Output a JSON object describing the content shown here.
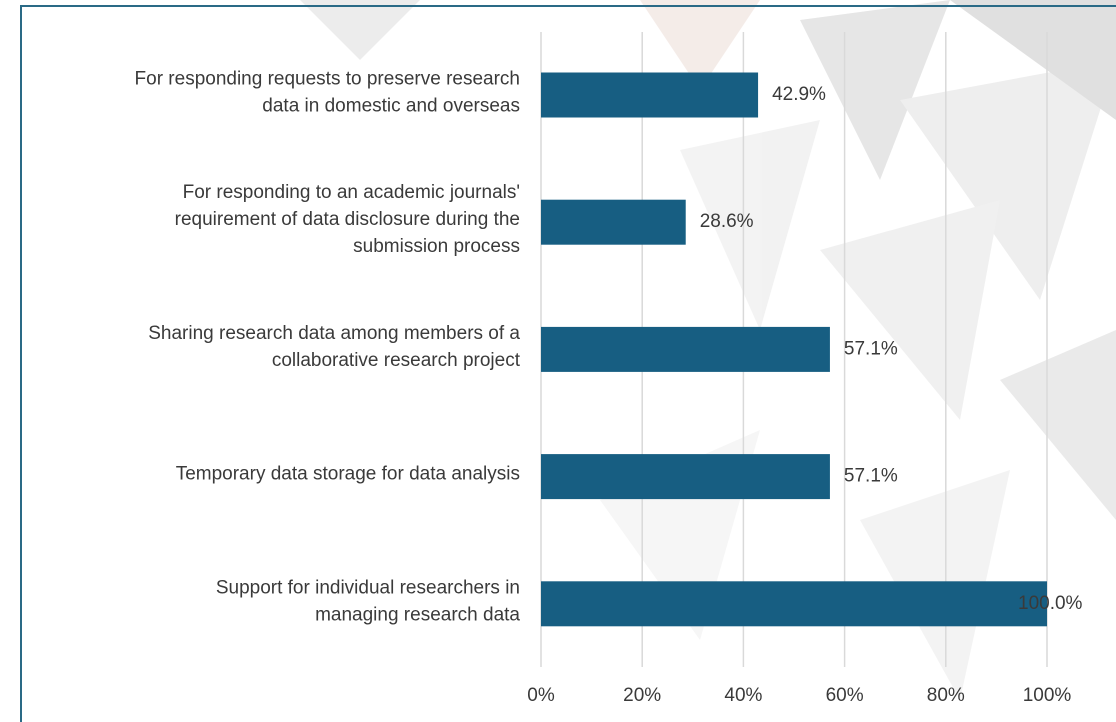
{
  "chart_data": {
    "type": "bar",
    "orientation": "horizontal",
    "categories": [
      [
        "For responding requests to preserve research",
        "data in domestic and overseas"
      ],
      [
        "For responding to an academic journals'",
        "requirement of data disclosure during the",
        "submission process"
      ],
      [
        "Sharing research data among members of a",
        "collaborative research project"
      ],
      [
        "Temporary data storage for data analysis"
      ],
      [
        "Support for individual researchers in",
        "managing research data"
      ]
    ],
    "values": [
      42.9,
      28.6,
      57.1,
      57.1,
      100.0
    ],
    "value_labels": [
      "42.9%",
      "28.6%",
      "57.1%",
      "57.1%",
      "100.0%"
    ],
    "color": "#175e82",
    "xlim": [
      0,
      100
    ],
    "xticks": [
      {
        "value": 0,
        "label": "0%"
      },
      {
        "value": 20,
        "label": "20%"
      },
      {
        "value": 40,
        "label": "40%"
      },
      {
        "value": 60,
        "label": "60%"
      },
      {
        "value": 80,
        "label": "80%"
      },
      {
        "value": 100,
        "label": "100%"
      }
    ],
    "grid": true
  }
}
